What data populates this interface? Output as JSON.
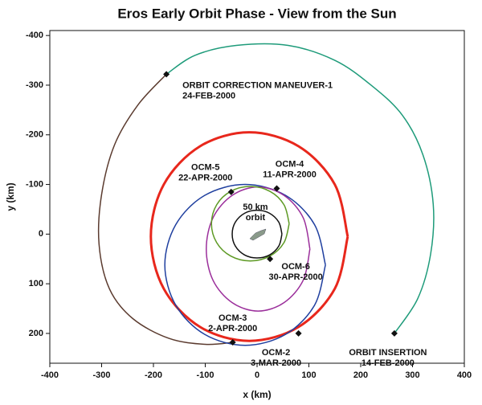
{
  "chart_data": {
    "type": "line",
    "title": "Eros Early Orbit Phase - View from the Sun",
    "x_label": "x (km)",
    "y_label": "y (km)",
    "xlim": [
      -400,
      400
    ],
    "ylim": [
      -410,
      260
    ],
    "y_inverted": true,
    "xticks": [
      -400,
      -300,
      -200,
      -100,
      0,
      100,
      200,
      300,
      400
    ],
    "yticks": [
      -400,
      -300,
      -200,
      -100,
      0,
      100,
      200
    ],
    "series": [
      {
        "color": "#1e9b7a",
        "x": [
          265,
          310,
          335,
          340,
          320,
          280,
          220,
          150,
          60,
          -40,
          -120,
          -175
        ],
        "values": [
          200,
          130,
          40,
          -60,
          -160,
          -240,
          -300,
          -350,
          -380,
          -380,
          -360,
          -322
        ]
      },
      {
        "color": "#5b3b2f",
        "x": [
          -175,
          -230,
          -275,
          -300,
          -305,
          -285,
          -240,
          -170,
          -100,
          -47
        ],
        "values": [
          -322,
          -260,
          -180,
          -80,
          20,
          110,
          170,
          210,
          222,
          218
        ]
      },
      {
        "color": "#e8271c",
        "x": [
          175,
          150,
          80,
          -15,
          -110,
          -180,
          -205,
          -180,
          -110,
          -15,
          80,
          150,
          175
        ],
        "values": [
          5,
          110,
          187,
          215,
          187,
          110,
          5,
          -100,
          -177,
          -205,
          -177,
          -100,
          5
        ]
      },
      {
        "color": "#1f3f9f",
        "x": [
          132,
          111,
          55,
          -23,
          -101,
          -157,
          -178,
          -157,
          -101,
          -23,
          55,
          111,
          132
        ],
        "values": [
          62,
          143,
          202,
          224,
          202,
          143,
          62,
          -19,
          -78,
          -100,
          -78,
          -19,
          62
        ]
      },
      {
        "color": "#9b2f9b",
        "x": [
          102,
          89,
          52,
          2,
          -48,
          -85,
          -98,
          -85,
          -48,
          2,
          52,
          89,
          102
        ],
        "values": [
          30,
          93,
          138,
          155,
          138,
          93,
          30,
          -33,
          -78,
          -95,
          -78,
          -33,
          30
        ]
      },
      {
        "color": "#5e9a25",
        "x": [
          62,
          52,
          25,
          -13,
          -51,
          -78,
          -88,
          -78,
          -51,
          -13,
          25,
          52,
          62
        ],
        "values": [
          -21,
          17,
          44,
          54,
          44,
          17,
          -21,
          -59,
          -86,
          -96,
          -86,
          -59,
          -21
        ]
      },
      {
        "color": "#111111",
        "x": [
          48,
          42,
          24,
          0,
          -24,
          -42,
          -48,
          -42,
          -24,
          0,
          24,
          42,
          48
        ],
        "values": [
          0,
          24,
          42,
          48,
          42,
          24,
          0,
          -24,
          -42,
          -48,
          -42,
          -24,
          0
        ]
      }
    ],
    "events": [
      {
        "name": "ORBIT CORRECTION MANEUVER-1",
        "date": "24-FEB-2000",
        "x": -175,
        "y": -322
      },
      {
        "name": "ORBIT INSERTION",
        "date": "14-FEB-2000",
        "x": 265,
        "y": 200
      },
      {
        "name": "OCM-2",
        "date": "3-MAR-2000",
        "x": 80,
        "y": 200
      },
      {
        "name": "OCM-3",
        "date": "2-APR-2000",
        "x": -47,
        "y": 218
      },
      {
        "name": "OCM-4",
        "date": "11-APR-2000",
        "x": 38,
        "y": -92
      },
      {
        "name": "OCM-5",
        "date": "22-APR-2000",
        "x": -50,
        "y": -85
      },
      {
        "name": "OCM-6",
        "date": "30-APR-2000",
        "x": 25,
        "y": 50
      }
    ],
    "annotations": [
      "50 km",
      "orbit"
    ]
  }
}
